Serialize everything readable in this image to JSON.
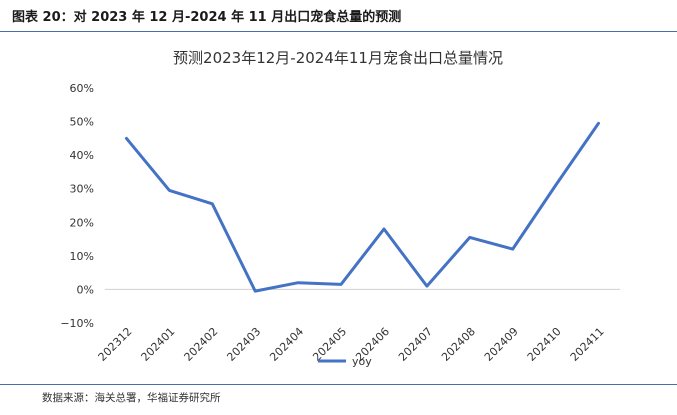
{
  "figure": {
    "caption": "图表 20：对 2023 年 12 月-2024 年 11 月出口宠食总量的预测",
    "source": "数据来源：海关总署，华福证券研究所"
  },
  "chart_data": {
    "type": "line",
    "title": "预测2023年12月-2024年11月宠食出口总量情况",
    "xlabel": "",
    "ylabel": "",
    "categories": [
      "202312",
      "202401",
      "202402",
      "202403",
      "202404",
      "202405",
      "202406",
      "202407",
      "202408",
      "202409",
      "202410",
      "202411"
    ],
    "series": [
      {
        "name": "yoy",
        "values": [
          45,
          29.5,
          25.5,
          -0.5,
          2,
          1.5,
          18,
          1,
          15.5,
          12,
          31,
          49.5
        ],
        "color": "#4472c4"
      }
    ],
    "ylim": [
      -10,
      60
    ],
    "yticks": [
      -10,
      0,
      10,
      20,
      30,
      40,
      50,
      60
    ],
    "yticklabels": [
      "−10%",
      "0%",
      "10%",
      "20%",
      "30%",
      "40%",
      "50%",
      "60%"
    ],
    "grid": false,
    "legend": "bottom"
  }
}
